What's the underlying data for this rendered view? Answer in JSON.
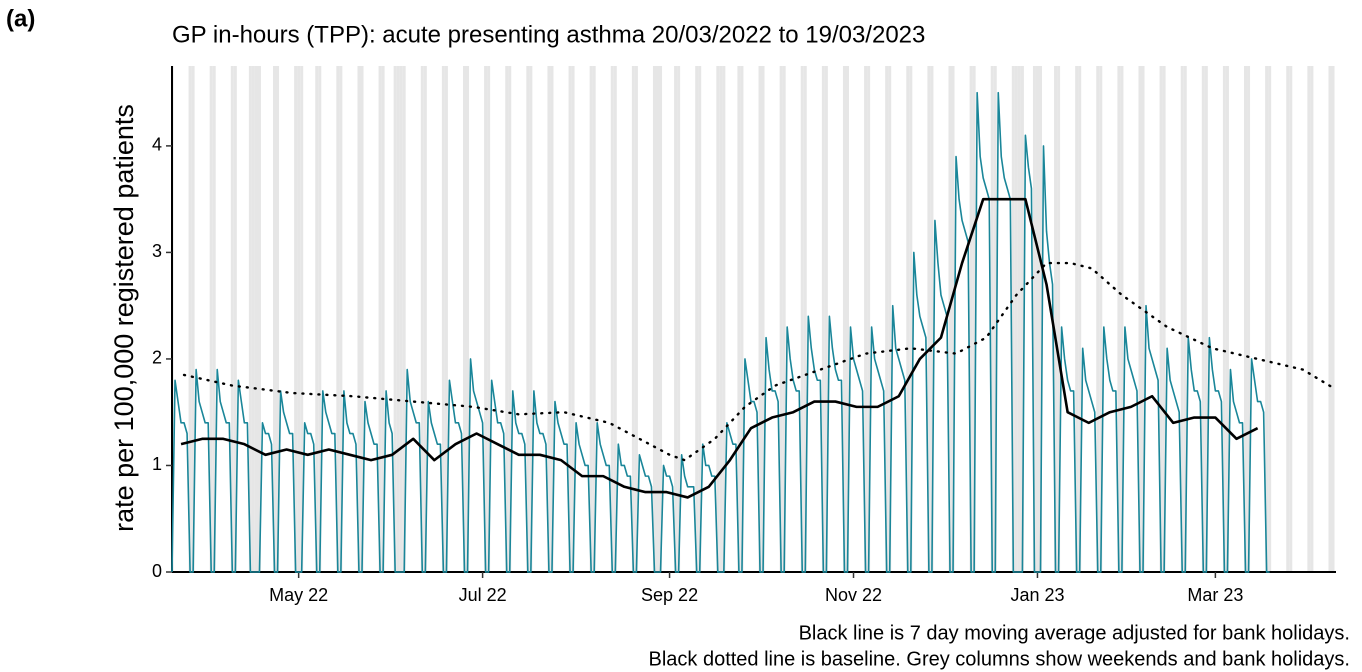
{
  "chart_data": {
    "type": "line",
    "panel_label": "(a)",
    "title": "GP in-hours (TPP): acute presenting asthma 20/03/2022 to 19/03/2023",
    "y_label": "rate per 100,000 registered patients",
    "notes": [
      "Black line is 7 day moving average adjusted for bank holidays.",
      "Black dotted line is baseline. Grey columns show weekends and bank holidays."
    ],
    "xlim": [
      0,
      386
    ],
    "ylim": [
      0,
      4.75
    ],
    "xticks": [
      {
        "value": 42,
        "label": "May 22"
      },
      {
        "value": 103,
        "label": "Jul 22"
      },
      {
        "value": 165,
        "label": "Sep 22"
      },
      {
        "value": 226,
        "label": "Nov 22"
      },
      {
        "value": 287,
        "label": "Jan 23"
      },
      {
        "value": 346,
        "label": "Mar 23"
      }
    ],
    "yticks": [
      0,
      1,
      2,
      3,
      4
    ],
    "shade_color": "#e6e6e6",
    "shaded_x": [
      0,
      6,
      7,
      13,
      14,
      20,
      21,
      26,
      27,
      28,
      29,
      34,
      35,
      41,
      42,
      43,
      48,
      49,
      55,
      56,
      62,
      63,
      69,
      70,
      74,
      75,
      76,
      77,
      83,
      84,
      90,
      91,
      97,
      98,
      104,
      105,
      111,
      112,
      118,
      119,
      125,
      126,
      132,
      133,
      139,
      140,
      146,
      147,
      153,
      154,
      160,
      161,
      162,
      167,
      168,
      174,
      175,
      181,
      182,
      183,
      188,
      189,
      195,
      196,
      202,
      203,
      209,
      210,
      216,
      217,
      223,
      224,
      230,
      231,
      237,
      238,
      244,
      245,
      251,
      252,
      258,
      259,
      265,
      266,
      272,
      273,
      279,
      280,
      281,
      282,
      286,
      287,
      288,
      293,
      294,
      300,
      301,
      307,
      308,
      314,
      315,
      321,
      322,
      328,
      329,
      335,
      336,
      342,
      343,
      349,
      350,
      356,
      357,
      363,
      364,
      370,
      371,
      377,
      378,
      384,
      385
    ],
    "series": [
      {
        "color": "#1a8699",
        "width": 1.6,
        "dash": false,
        "x": [
          0,
          1,
          2,
          3,
          4,
          5,
          6,
          7,
          8,
          9,
          10,
          11,
          12,
          13,
          14,
          15,
          16,
          17,
          18,
          19,
          20,
          21,
          22,
          23,
          24,
          25,
          26,
          27,
          28,
          29,
          30,
          31,
          32,
          33,
          34,
          35,
          36,
          37,
          38,
          39,
          40,
          41,
          42,
          43,
          44,
          45,
          46,
          47,
          48,
          49,
          50,
          51,
          52,
          53,
          54,
          55,
          56,
          57,
          58,
          59,
          60,
          61,
          62,
          63,
          64,
          65,
          66,
          67,
          68,
          69,
          70,
          71,
          72,
          73,
          74,
          75,
          76,
          77,
          78,
          79,
          80,
          81,
          82,
          83,
          84,
          85,
          86,
          87,
          88,
          89,
          90,
          91,
          92,
          93,
          94,
          95,
          96,
          97,
          98,
          99,
          100,
          101,
          102,
          103,
          104,
          105,
          106,
          107,
          108,
          109,
          110,
          111,
          112,
          113,
          114,
          115,
          116,
          117,
          118,
          119,
          120,
          121,
          122,
          123,
          124,
          125,
          126,
          127,
          128,
          129,
          130,
          131,
          132,
          133,
          134,
          135,
          136,
          137,
          138,
          139,
          140,
          141,
          142,
          143,
          144,
          145,
          146,
          147,
          148,
          149,
          150,
          151,
          152,
          153,
          154,
          155,
          156,
          157,
          158,
          159,
          160,
          161,
          162,
          163,
          164,
          165,
          166,
          167,
          168,
          169,
          170,
          171,
          172,
          173,
          174,
          175,
          176,
          177,
          178,
          179,
          180,
          181,
          182,
          183,
          184,
          185,
          186,
          187,
          188,
          189,
          190,
          191,
          192,
          193,
          194,
          195,
          196,
          197,
          198,
          199,
          200,
          201,
          202,
          203,
          204,
          205,
          206,
          207,
          208,
          209,
          210,
          211,
          212,
          213,
          214,
          215,
          216,
          217,
          218,
          219,
          220,
          221,
          222,
          223,
          224,
          225,
          226,
          227,
          228,
          229,
          230,
          231,
          232,
          233,
          234,
          235,
          236,
          237,
          238,
          239,
          240,
          241,
          242,
          243,
          244,
          245,
          246,
          247,
          248,
          249,
          250,
          251,
          252,
          253,
          254,
          255,
          256,
          257,
          258,
          259,
          260,
          261,
          262,
          263,
          264,
          265,
          266,
          267,
          268,
          269,
          270,
          271,
          272,
          273,
          274,
          275,
          276,
          277,
          278,
          279,
          280,
          281,
          282,
          283,
          284,
          285,
          286,
          287,
          288,
          289,
          290,
          291,
          292,
          293,
          294,
          295,
          296,
          297,
          298,
          299,
          300,
          301,
          302,
          303,
          304,
          305,
          306,
          307,
          308,
          309,
          310,
          311,
          312,
          313,
          314,
          315,
          316,
          317,
          318,
          319,
          320,
          321,
          322,
          323,
          324,
          325,
          326,
          327,
          328,
          329,
          330,
          331,
          332,
          333,
          334,
          335,
          336,
          337,
          338,
          339,
          340,
          341,
          342,
          343,
          344,
          345,
          346,
          347,
          348,
          349,
          350,
          351,
          352,
          353,
          354,
          355,
          356,
          357,
          358,
          359,
          360,
          361,
          362,
          363,
          364
        ],
        "values": [
          0,
          1.8,
          1.6,
          1.4,
          1.4,
          1.3,
          0,
          0,
          1.9,
          1.6,
          1.5,
          1.4,
          1.4,
          0,
          0,
          1.9,
          1.6,
          1.5,
          1.4,
          1.4,
          0,
          0,
          1.8,
          1.6,
          1.4,
          1.4,
          0,
          0,
          0,
          0,
          1.4,
          1.3,
          1.3,
          1.2,
          0,
          0,
          1.7,
          1.5,
          1.4,
          1.3,
          1.3,
          0,
          0,
          0,
          1.4,
          1.3,
          1.3,
          1.2,
          0,
          0,
          1.7,
          1.5,
          1.4,
          1.3,
          1.3,
          0,
          0,
          1.7,
          1.4,
          1.3,
          1.3,
          1.2,
          0,
          0,
          1.6,
          1.4,
          1.3,
          1.2,
          1.2,
          0,
          0,
          1.7,
          1.4,
          1.3,
          0,
          0,
          0,
          0,
          1.9,
          1.6,
          1.5,
          1.4,
          1.4,
          0,
          0,
          1.6,
          1.4,
          1.3,
          1.2,
          1.2,
          0,
          0,
          1.8,
          1.6,
          1.4,
          1.4,
          1.3,
          0,
          0,
          2.0,
          1.7,
          1.6,
          1.5,
          1.4,
          0,
          0,
          1.8,
          1.6,
          1.4,
          1.4,
          1.3,
          0,
          0,
          1.7,
          1.4,
          1.3,
          1.3,
          1.2,
          0,
          0,
          1.7,
          1.4,
          1.3,
          1.3,
          1.2,
          0,
          0,
          1.6,
          1.4,
          1.3,
          1.2,
          1.2,
          0,
          0,
          1.4,
          1.2,
          1.1,
          1.0,
          1.0,
          0,
          0,
          1.4,
          1.2,
          1.1,
          1.0,
          1.0,
          0,
          0,
          1.2,
          1.0,
          1.0,
          0.9,
          0.9,
          0,
          0,
          1.1,
          1.0,
          0.9,
          0.9,
          0.8,
          0,
          0,
          0,
          1.0,
          0.9,
          0.9,
          0.8,
          0,
          0,
          1.1,
          0.9,
          0.8,
          0.8,
          0.8,
          0,
          0,
          1.2,
          1.0,
          1.0,
          0.9,
          0.9,
          0,
          0,
          0,
          1.4,
          1.3,
          1.2,
          1.2,
          0,
          0,
          2.0,
          1.8,
          1.6,
          1.6,
          1.5,
          0,
          0,
          2.2,
          1.9,
          1.7,
          1.7,
          1.6,
          0,
          0,
          2.3,
          2.0,
          1.8,
          1.7,
          1.7,
          0,
          0,
          2.4,
          2.1,
          1.9,
          1.8,
          1.8,
          0,
          0,
          2.4,
          2.1,
          1.9,
          1.8,
          1.8,
          0,
          0,
          2.3,
          2.0,
          1.9,
          1.8,
          1.7,
          0,
          0,
          2.3,
          2.0,
          1.9,
          1.8,
          1.7,
          0,
          0,
          2.5,
          2.1,
          2.0,
          1.9,
          1.8,
          0,
          0,
          3.0,
          2.6,
          2.4,
          2.3,
          2.2,
          0,
          0,
          3.3,
          2.9,
          2.6,
          2.5,
          2.4,
          0,
          0,
          3.9,
          3.5,
          3.3,
          3.2,
          3.1,
          0,
          0,
          4.5,
          3.9,
          3.7,
          3.6,
          3.5,
          0,
          0,
          4.5,
          3.9,
          3.7,
          3.6,
          3.5,
          0,
          0,
          0,
          0,
          4.1,
          3.8,
          3.6,
          0,
          0,
          0,
          4.0,
          3.2,
          2.9,
          2.7,
          0,
          0,
          2.3,
          2.0,
          1.8,
          1.7,
          1.7,
          0,
          0,
          2.1,
          1.8,
          1.7,
          1.6,
          1.5,
          0,
          0,
          2.3,
          2.0,
          1.8,
          1.7,
          1.7,
          0,
          0,
          2.3,
          2.0,
          1.9,
          1.8,
          1.7,
          0,
          0,
          2.5,
          2.1,
          2.0,
          1.9,
          1.8,
          0,
          0,
          2.1,
          1.8,
          1.7,
          1.6,
          1.5,
          0,
          0,
          2.2,
          1.9,
          1.7,
          1.7,
          1.6,
          0,
          0,
          2.2,
          1.9,
          1.7,
          1.7,
          1.6,
          0,
          0,
          1.9,
          1.6,
          1.5,
          1.4,
          1.4,
          0,
          0,
          2.0,
          1.8,
          1.6,
          1.6,
          1.5,
          0,
          0
        ]
      },
      {
        "color": "#000000",
        "width": 2.6,
        "dash": false,
        "x": [
          3,
          10,
          17,
          24,
          31,
          38,
          45,
          52,
          59,
          66,
          73,
          80,
          87,
          94,
          101,
          108,
          115,
          122,
          129,
          136,
          143,
          150,
          157,
          164,
          171,
          178,
          185,
          192,
          199,
          206,
          213,
          220,
          227,
          234,
          241,
          248,
          255,
          262,
          269,
          276,
          283,
          290,
          297,
          304,
          311,
          318,
          325,
          332,
          339,
          346,
          353,
          360
        ],
        "values": [
          1.2,
          1.25,
          1.25,
          1.2,
          1.1,
          1.15,
          1.1,
          1.15,
          1.1,
          1.05,
          1.1,
          1.25,
          1.05,
          1.2,
          1.3,
          1.2,
          1.1,
          1.1,
          1.05,
          0.9,
          0.9,
          0.8,
          0.75,
          0.75,
          0.7,
          0.8,
          1.05,
          1.35,
          1.45,
          1.5,
          1.6,
          1.6,
          1.55,
          1.55,
          1.65,
          2.0,
          2.2,
          2.9,
          3.5,
          3.5,
          3.5,
          2.7,
          1.5,
          1.4,
          1.5,
          1.55,
          1.65,
          1.4,
          1.45,
          1.45,
          1.25,
          1.35
        ]
      },
      {
        "color": "#000000",
        "width": 2.4,
        "dash": true,
        "x": [
          4,
          20,
          40,
          60,
          80,
          100,
          115,
          130,
          145,
          155,
          165,
          170,
          180,
          190,
          200,
          215,
          230,
          245,
          260,
          270,
          280,
          290,
          298,
          305,
          315,
          330,
          345,
          360,
          375,
          385
        ],
        "values": [
          1.85,
          1.75,
          1.68,
          1.65,
          1.6,
          1.55,
          1.48,
          1.5,
          1.4,
          1.25,
          1.1,
          1.05,
          1.25,
          1.55,
          1.75,
          1.9,
          2.05,
          2.1,
          2.05,
          2.2,
          2.6,
          2.9,
          2.9,
          2.85,
          2.6,
          2.3,
          2.1,
          2.0,
          1.9,
          1.73
        ]
      }
    ]
  }
}
